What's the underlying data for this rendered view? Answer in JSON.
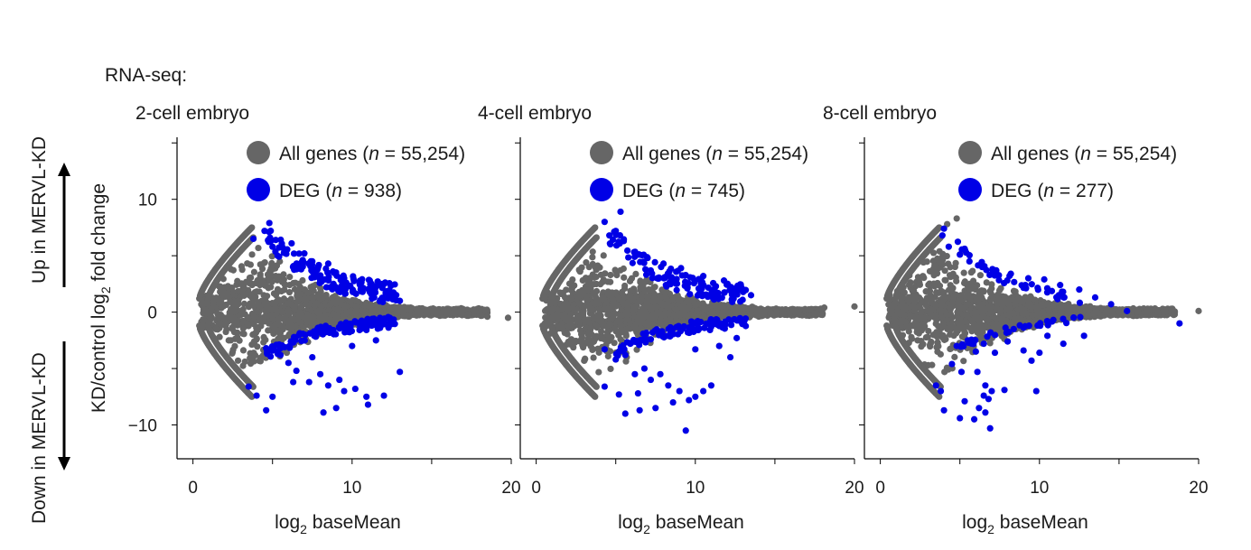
{
  "header": "RNA-seq:",
  "side_labels": {
    "up": "Up in MERVL-KD",
    "down": "Down in MERVL-KD"
  },
  "colors": {
    "all_genes": "#666666",
    "deg": "#0000e6",
    "axis": "#000000"
  },
  "chart_data": [
    {
      "type": "scatter",
      "title": "2-cell embryo",
      "xlabel": "log2 baseMean",
      "ylabel": "KD/control log2 fold change",
      "xlim": [
        -1,
        20
      ],
      "ylim": [
        -13,
        15.5
      ],
      "xticks": [
        0,
        10,
        20
      ],
      "yticks": [
        -10,
        0,
        10
      ],
      "legend": [
        {
          "name": "All genes",
          "n_label": "n",
          "value_label": " = 55,254)",
          "n": 55254
        },
        {
          "name": "DEG",
          "n_label": "n",
          "value_label": " = 938)",
          "n": 938
        }
      ],
      "series": [
        {
          "name": "All genes",
          "envelope_peak_x": 3.5,
          "envelope_peak_y": 7.5,
          "max_x": 18.5,
          "outliers": [
            [
              18.5,
              -0.4
            ],
            [
              19.8,
              -0.5
            ],
            [
              17.3,
              -0.2
            ],
            [
              16.8,
              0.1
            ]
          ]
        },
        {
          "name": "DEG",
          "points": [
            [
              4.8,
              7.9
            ],
            [
              4.5,
              7.2
            ],
            [
              3.8,
              6.5
            ],
            [
              5.2,
              6.4
            ],
            [
              5.0,
              5.8
            ],
            [
              6.2,
              6.1
            ],
            [
              7.0,
              5.2
            ],
            [
              8.5,
              4.3
            ],
            [
              8.8,
              3.6
            ],
            [
              9.5,
              3.0
            ],
            [
              10.5,
              2.4
            ],
            [
              11.2,
              1.6
            ],
            [
              12.5,
              1.4
            ],
            [
              13.0,
              1.0
            ],
            [
              7.5,
              4.5
            ],
            [
              6.8,
              3.8
            ],
            [
              8.0,
              2.8
            ],
            [
              9.0,
              2.2
            ],
            [
              4.6,
              -3.2
            ],
            [
              5.5,
              -3.8
            ],
            [
              6.0,
              -4.5
            ],
            [
              7.5,
              -4.0
            ],
            [
              8.0,
              -5.5
            ],
            [
              8.5,
              -6.5
            ],
            [
              9.2,
              -6.0
            ],
            [
              9.5,
              -7.0
            ],
            [
              9.0,
              -8.5
            ],
            [
              8.2,
              -8.9
            ],
            [
              7.3,
              -6.2
            ],
            [
              6.5,
              -5.2
            ],
            [
              10.2,
              -6.8
            ],
            [
              10.9,
              -7.5
            ],
            [
              11.0,
              -8.2
            ],
            [
              12.0,
              -7.4
            ],
            [
              13.0,
              -5.3
            ],
            [
              11.5,
              -2.5
            ],
            [
              10.0,
              -3.0
            ],
            [
              5.0,
              -7.5
            ],
            [
              4.6,
              -8.7
            ],
            [
              3.5,
              -6.6
            ],
            [
              4.0,
              -7.4
            ],
            [
              6.3,
              -6.2
            ]
          ]
        }
      ]
    },
    {
      "type": "scatter",
      "title": "4-cell embryo",
      "xlabel": "log2 baseMean",
      "ylabel": "KD/control log2 fold change",
      "xlim": [
        -1,
        20
      ],
      "ylim": [
        -13,
        15.5
      ],
      "xticks": [
        0,
        10,
        20
      ],
      "yticks": [
        -10,
        0,
        10
      ],
      "legend": [
        {
          "name": "All genes",
          "n_label": "n",
          "value_label": " = 55,254)",
          "n": 55254
        },
        {
          "name": "DEG",
          "n_label": "n",
          "value_label": " = 745)",
          "n": 745
        }
      ],
      "series": [
        {
          "name": "All genes",
          "envelope_peak_x": 3.5,
          "envelope_peak_y": 7.5,
          "max_x": 18,
          "outliers": [
            [
              18.1,
              0.4
            ],
            [
              17.2,
              0.2
            ],
            [
              17.6,
              -0.1
            ],
            [
              20.0,
              0.5
            ]
          ]
        },
        {
          "name": "DEG",
          "points": [
            [
              5.3,
              8.9
            ],
            [
              4.3,
              8.0
            ],
            [
              5.0,
              7.2
            ],
            [
              4.6,
              6.8
            ],
            [
              5.5,
              6.3
            ],
            [
              6.2,
              5.3
            ],
            [
              7.0,
              4.8
            ],
            [
              8.0,
              4.3
            ],
            [
              9.1,
              3.9
            ],
            [
              10.5,
              3.2
            ],
            [
              11.8,
              2.8
            ],
            [
              12.6,
              1.8
            ],
            [
              13.5,
              1.5
            ],
            [
              7.6,
              3.0
            ],
            [
              9.5,
              2.1
            ],
            [
              4.3,
              -3.3
            ],
            [
              5.0,
              -4.2
            ],
            [
              5.6,
              -3.8
            ],
            [
              6.2,
              -5.5
            ],
            [
              6.8,
              -5.0
            ],
            [
              7.2,
              -6.0
            ],
            [
              7.8,
              -5.5
            ],
            [
              8.3,
              -6.5
            ],
            [
              8.6,
              -8.0
            ],
            [
              9.0,
              -7.0
            ],
            [
              9.6,
              -7.8
            ],
            [
              10.0,
              -7.5
            ],
            [
              10.5,
              -7.0
            ],
            [
              11.0,
              -6.5
            ],
            [
              7.5,
              -8.5
            ],
            [
              6.5,
              -8.7
            ],
            [
              5.2,
              -7.3
            ],
            [
              4.3,
              -6.6
            ],
            [
              10.0,
              -3.3
            ],
            [
              11.5,
              -3.0
            ],
            [
              12.2,
              -4.0
            ],
            [
              12.6,
              -2.3
            ],
            [
              9.4,
              -10.5
            ],
            [
              5.6,
              -9.0
            ],
            [
              6.4,
              -7.2
            ]
          ]
        }
      ]
    },
    {
      "type": "scatter",
      "title": "8-cell embryo",
      "xlabel": "log2 baseMean",
      "ylabel": "KD/control log2 fold change",
      "xlim": [
        -1,
        20
      ],
      "ylim": [
        -13,
        15.5
      ],
      "xticks": [
        0,
        10,
        20
      ],
      "yticks": [
        -10,
        0,
        10
      ],
      "legend": [
        {
          "name": "All genes",
          "n_label": "n",
          "value_label": " = 55,254)",
          "n": 55254
        },
        {
          "name": "DEG",
          "n_label": "n",
          "value_label": " = 277)",
          "n": 277
        }
      ],
      "series": [
        {
          "name": "All genes",
          "envelope_peak_x": 3.5,
          "envelope_peak_y": 7.5,
          "max_x": 18.5,
          "outliers": [
            [
              18.5,
              0.0
            ],
            [
              20.0,
              0.1
            ],
            [
              17.0,
              0.3
            ],
            [
              16.2,
              0.1
            ],
            [
              4.8,
              8.3
            ],
            [
              4.2,
              7.8
            ]
          ]
        },
        {
          "name": "DEG",
          "points": [
            [
              4.0,
              7.4
            ],
            [
              3.9,
              6.8
            ],
            [
              4.3,
              5.8
            ],
            [
              5.0,
              5.1
            ],
            [
              5.6,
              4.5
            ],
            [
              6.4,
              4.0
            ],
            [
              7.2,
              3.7
            ],
            [
              8.2,
              3.4
            ],
            [
              9.3,
              3.0
            ],
            [
              10.3,
              2.9
            ],
            [
              11.3,
              2.4
            ],
            [
              12.5,
              2.0
            ],
            [
              13.5,
              1.3
            ],
            [
              14.5,
              0.7
            ],
            [
              15.5,
              0.1
            ],
            [
              18.8,
              -1.0
            ],
            [
              4.8,
              -3.0
            ],
            [
              5.5,
              -2.5
            ],
            [
              6.0,
              -3.5
            ],
            [
              6.5,
              -2.8
            ],
            [
              7.2,
              -3.6
            ],
            [
              8.0,
              -2.6
            ],
            [
              9.0,
              -3.4
            ],
            [
              9.5,
              -4.3
            ],
            [
              10.0,
              -3.6
            ],
            [
              10.5,
              -2.1
            ],
            [
              11.5,
              -2.8
            ],
            [
              12.8,
              -2.1
            ],
            [
              4.5,
              -4.6
            ],
            [
              5.1,
              -5.3
            ],
            [
              6.1,
              -5.3
            ],
            [
              6.6,
              -6.5
            ],
            [
              7.0,
              -7.0
            ],
            [
              6.5,
              -7.4
            ],
            [
              6.8,
              -7.7
            ],
            [
              7.8,
              -6.9
            ],
            [
              9.8,
              -7.0
            ],
            [
              6.2,
              -8.5
            ],
            [
              6.6,
              -8.9
            ],
            [
              6.9,
              -10.3
            ],
            [
              5.3,
              -7.9
            ],
            [
              5.0,
              -9.4
            ],
            [
              4.0,
              -8.7
            ],
            [
              5.9,
              -9.5
            ],
            [
              3.5,
              -6.5
            ],
            [
              3.8,
              -7.0
            ]
          ]
        }
      ]
    }
  ]
}
